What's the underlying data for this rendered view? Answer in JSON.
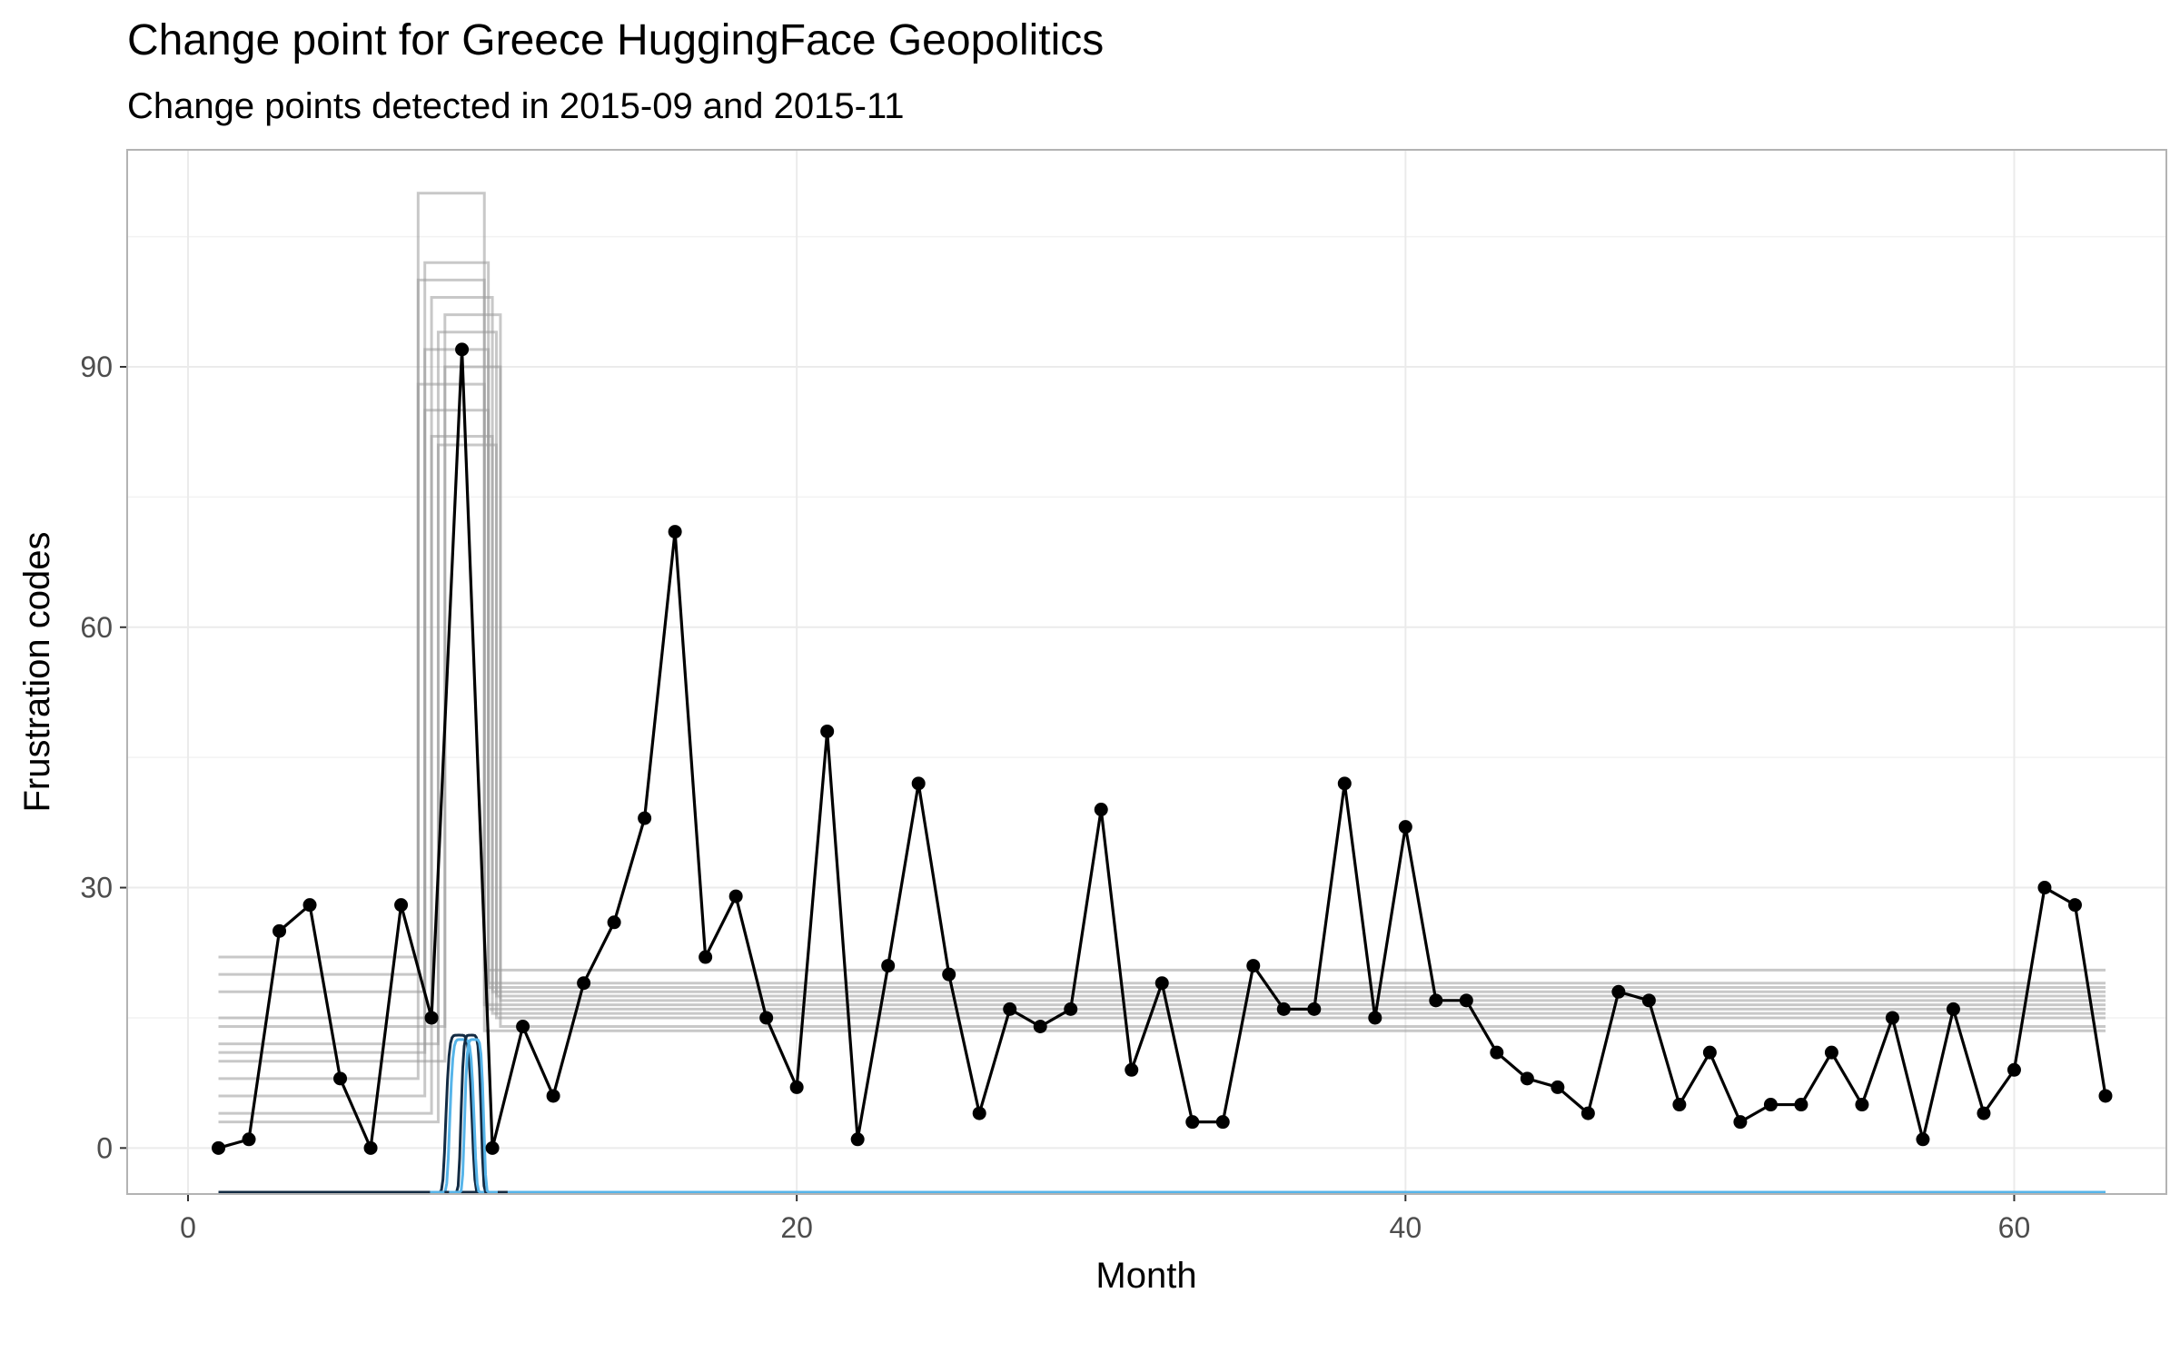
{
  "chart_data": {
    "type": "line",
    "title": "Change point for Greece HuggingFace Geopolitics",
    "subtitle": "Change points detected in 2015-09 and 2015-11",
    "xlabel": "Month",
    "ylabel": "Frustration codes",
    "xlim": [
      -2,
      65
    ],
    "ylim": [
      -5.3,
      115
    ],
    "xticks": [
      0,
      20,
      40,
      60
    ],
    "yticks": [
      0,
      30,
      60,
      90
    ],
    "grid": true,
    "legend": "none",
    "colors": {
      "series": "#000000",
      "regime_lines": "#9a9a9a",
      "posterior_light": "#56b4e9",
      "posterior_dark": "#132b43",
      "grid": "#ebebeb",
      "panel_border": "#b3b3b3"
    },
    "series": [
      {
        "x": [
          1,
          2,
          3,
          4,
          5,
          6,
          7,
          8,
          9,
          10,
          11,
          12,
          13,
          14,
          15,
          16,
          17,
          18,
          19,
          20,
          21,
          22,
          23,
          24,
          25,
          26,
          27,
          28,
          29,
          30,
          31,
          32,
          33,
          34,
          35,
          36,
          37,
          38,
          39,
          40,
          41,
          42,
          43,
          44,
          45,
          46,
          47,
          48,
          49,
          50,
          51,
          52,
          53,
          54,
          55,
          56,
          57,
          58,
          59,
          60,
          61,
          62,
          63
        ],
        "values": [
          0,
          1,
          25,
          28,
          8,
          0,
          28,
          15,
          92,
          0,
          14,
          6,
          19,
          26,
          38,
          71,
          22,
          29,
          15,
          7,
          48,
          1,
          21,
          42,
          20,
          4,
          16,
          14,
          16,
          39,
          9,
          19,
          3,
          3,
          21,
          16,
          16,
          42,
          15,
          37,
          17,
          17,
          11,
          8,
          7,
          4,
          18,
          17,
          5,
          11,
          3,
          5,
          5,
          11,
          5,
          15,
          1,
          16,
          4,
          9,
          30,
          28,
          6
        ]
      }
    ],
    "change_points": [
      9,
      11
    ],
    "regime_samples": [
      {
        "pre": 22,
        "mid": 110,
        "post": 20.5
      },
      {
        "pre": 18,
        "mid": 102,
        "post": 19
      },
      {
        "pre": 15,
        "mid": 98,
        "post": 18
      },
      {
        "pre": 12,
        "mid": 94,
        "post": 17.5
      },
      {
        "pre": 10,
        "mid": 90,
        "post": 17
      },
      {
        "pre": 8,
        "mid": 88,
        "post": 16.5
      },
      {
        "pre": 6,
        "mid": 85,
        "post": 16
      },
      {
        "pre": 4,
        "mid": 82,
        "post": 15.5
      },
      {
        "pre": 3,
        "mid": 81,
        "post": 15
      },
      {
        "pre": 14,
        "mid": 96,
        "post": 14
      },
      {
        "pre": 20,
        "mid": 100,
        "post": 13.5
      },
      {
        "pre": 11,
        "mid": 92,
        "post": 18.5
      }
    ]
  }
}
